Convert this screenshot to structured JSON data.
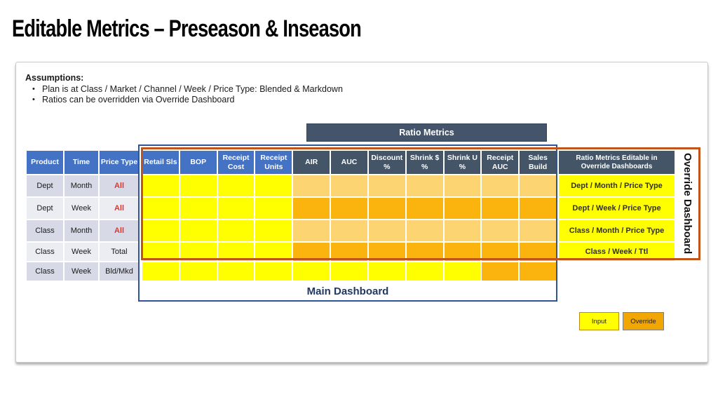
{
  "slide": {
    "title": "Editable Metrics – Preseason & Inseason"
  },
  "assumptions": {
    "heading": "Assumptions:",
    "bullets": [
      "Plan is at Class / Market / Channel / Week / Price Type: Blended & Markdown",
      "Ratios can be overridden via Override Dashboard"
    ]
  },
  "labels": {
    "ratio_metrics_banner": "Ratio Metrics",
    "main_dashboard": "Main Dashboard",
    "override_dashboard": "Override Dashboard"
  },
  "table": {
    "left_headers": [
      "Product",
      "Time",
      "Price Type"
    ],
    "metric_headers": [
      "Retail Sls",
      "BOP",
      "Receipt Cost",
      "Receipt Units",
      "AIR",
      "AUC",
      "Discount %",
      "Shrink $ %",
      "Shrink U %",
      "Receipt AUC",
      "Sales Build"
    ],
    "editable_header": "Ratio Metrics Editable in Override Dashboards",
    "cell_color_legend": {
      "Y": "input-editable-yellow",
      "L": "ratio-light-orange",
      "D": "ratio-dark-orange"
    },
    "rows": [
      {
        "product": "Dept",
        "time": "Month",
        "price_type": "All",
        "price_red": "true",
        "cells": [
          "Y",
          "Y",
          "Y",
          "Y",
          "L",
          "L",
          "L",
          "L",
          "L",
          "L",
          "L"
        ],
        "editable": "Dept / Month / Price Type"
      },
      {
        "product": "Dept",
        "time": "Week",
        "price_type": "All",
        "price_red": "true",
        "cells": [
          "Y",
          "Y",
          "Y",
          "Y",
          "D",
          "D",
          "D",
          "D",
          "D",
          "D",
          "D"
        ],
        "editable": "Dept / Week / Price Type"
      },
      {
        "product": "Class",
        "time": "Month",
        "price_type": "All",
        "price_red": "true",
        "cells": [
          "Y",
          "Y",
          "Y",
          "Y",
          "L",
          "L",
          "L",
          "L",
          "L",
          "L",
          "L"
        ],
        "editable": "Class / Month / Price Type"
      },
      {
        "product": "Class",
        "time": "Week",
        "price_type": "Total",
        "price_red": "false",
        "cells": [
          "Y",
          "Y",
          "Y",
          "Y",
          "D",
          "D",
          "D",
          "D",
          "D",
          "D",
          "D"
        ],
        "editable": "Class / Week / Ttl"
      },
      {
        "product": "Class",
        "time": "Week",
        "price_type": "Bld/Mkd",
        "price_red": "false",
        "cells": [
          "Y",
          "Y",
          "Y",
          "Y",
          "Y",
          "Y",
          "Y",
          "Y",
          "Y",
          "D",
          "D"
        ],
        "editable": ""
      }
    ]
  },
  "legend": {
    "input_label": "Input",
    "override_label": "Override"
  },
  "colors": {
    "header_blue": "#4472C4",
    "header_slate": "#445568",
    "cell_input_yellow": "#FFFF00",
    "cell_ratio_light": "#FCD572",
    "cell_ratio_dark": "#FBB40D",
    "main_dashboard_border": "#2F5597",
    "override_dashboard_border": "#C0551A",
    "row_shade_dark": "#D8D9E6",
    "row_shade_light": "#ECECF3",
    "price_all_red": "#E4332C",
    "legend_override_fill": "#F2A602"
  }
}
